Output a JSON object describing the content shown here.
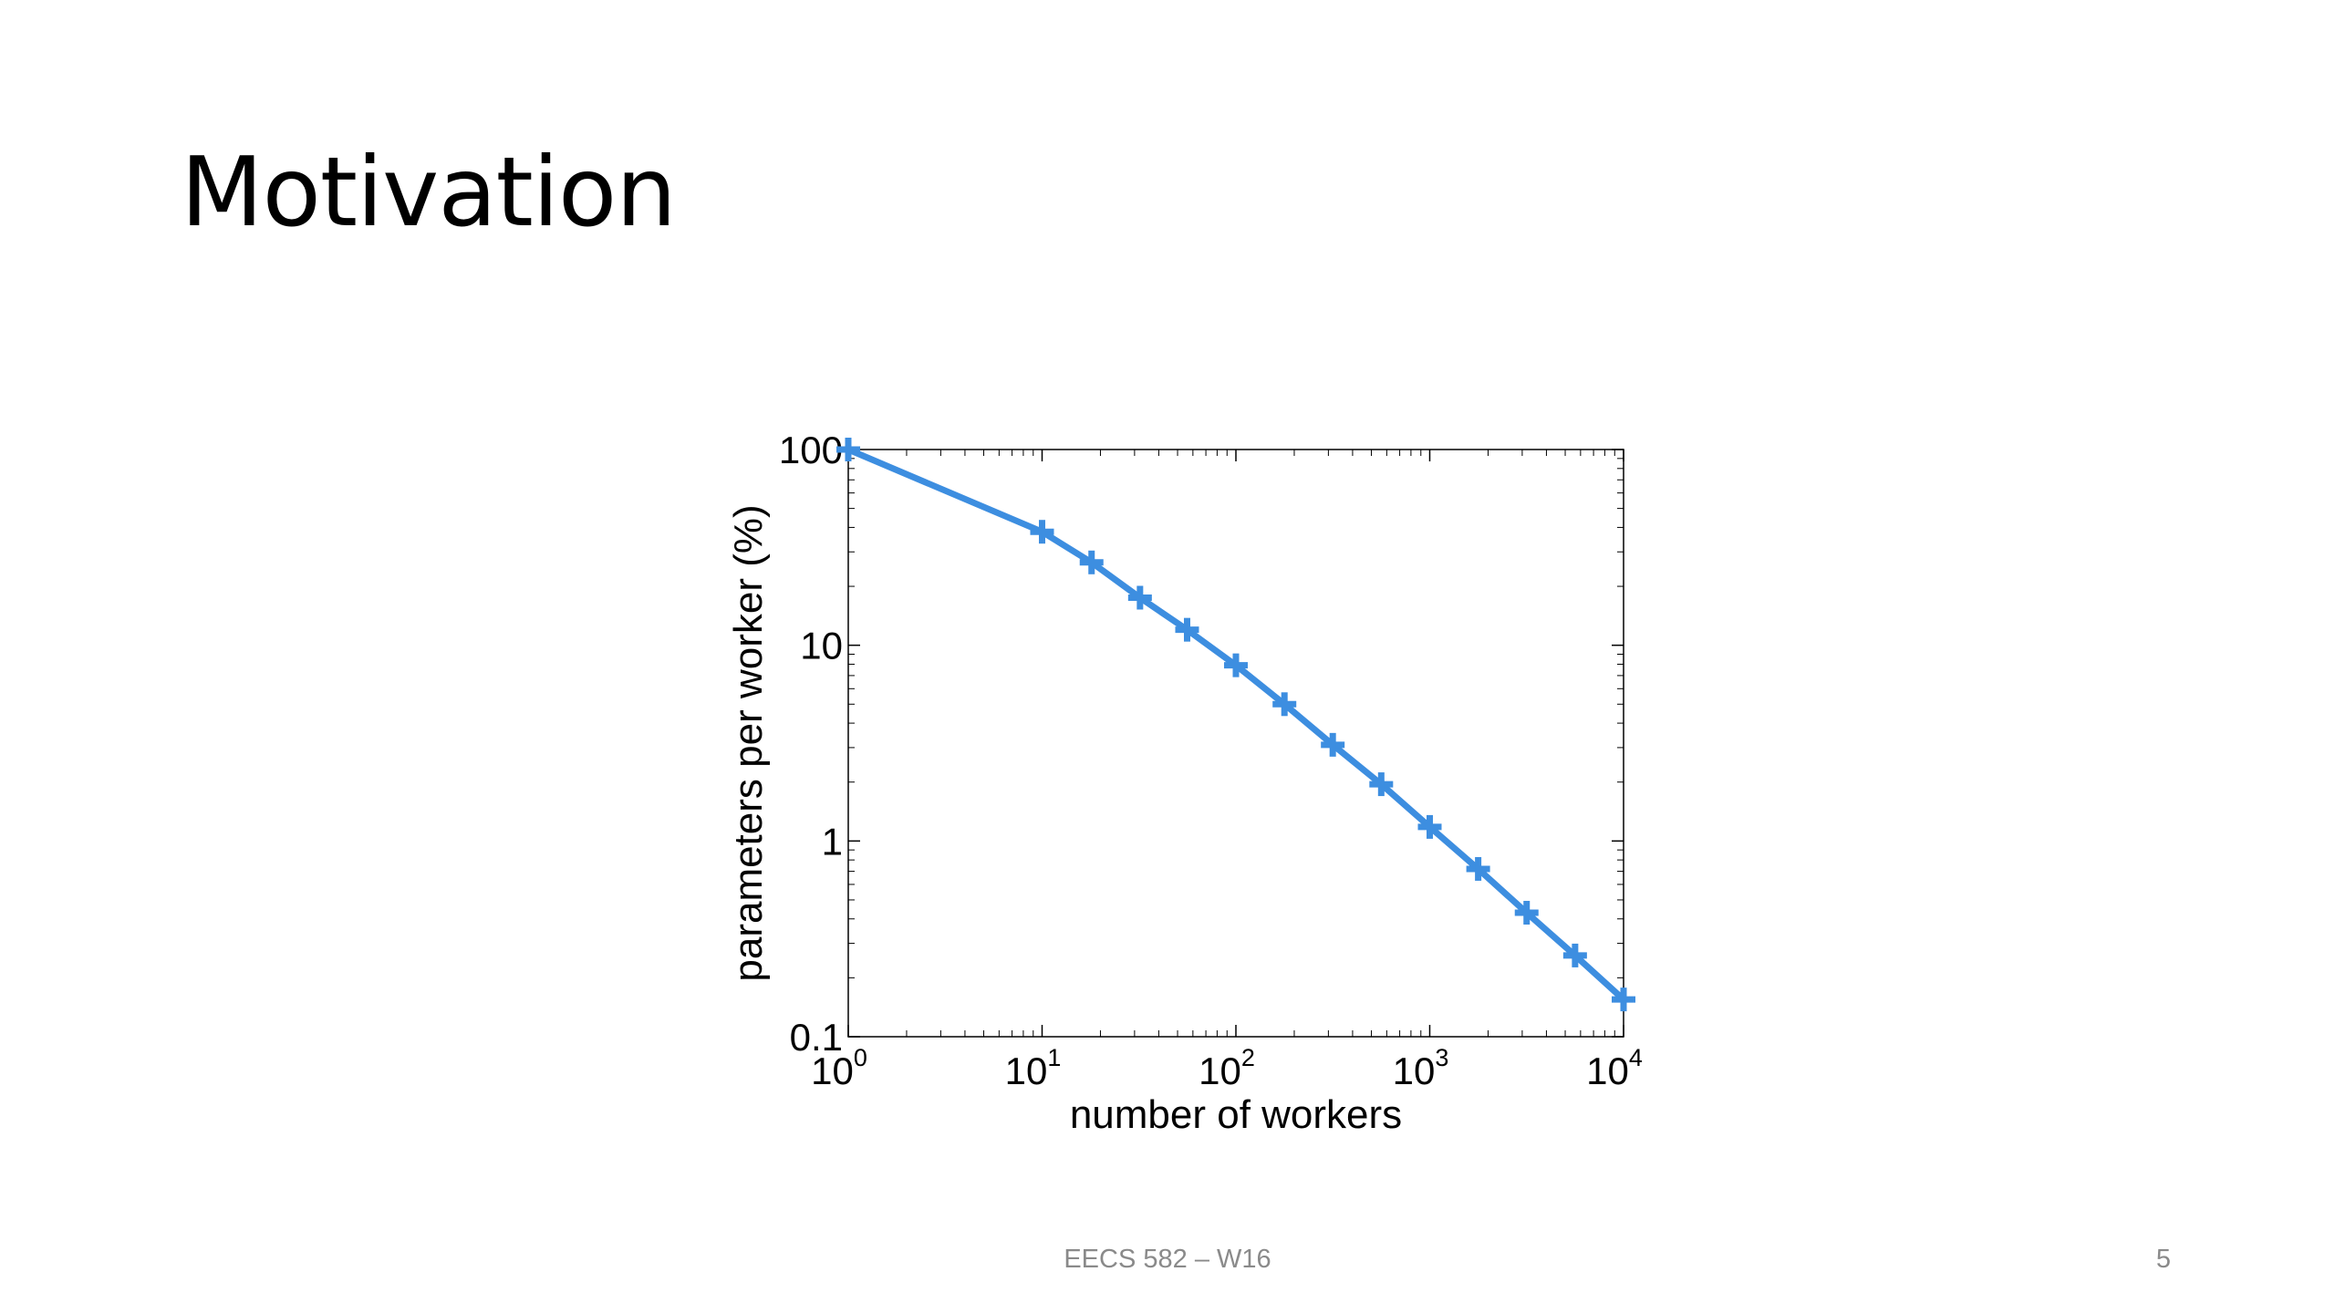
{
  "slide": {
    "title": "Motivation",
    "footer": "EECS 582 – W16",
    "page_number": "5"
  },
  "chart_data": {
    "type": "line",
    "title": "",
    "xlabel": "number of workers",
    "ylabel": "parameters per worker (%)",
    "xscale": "log",
    "yscale": "log",
    "xlim": [
      1,
      10000
    ],
    "ylim": [
      0.1,
      100
    ],
    "x_tick_labels": [
      {
        "base": "10",
        "exp": "0"
      },
      {
        "base": "10",
        "exp": "1"
      },
      {
        "base": "10",
        "exp": "2"
      },
      {
        "base": "10",
        "exp": "3"
      },
      {
        "base": "10",
        "exp": "4"
      }
    ],
    "y_tick_labels": [
      "0.1",
      "1",
      "10",
      "100"
    ],
    "grid": false,
    "line_color": "#3d8ee0",
    "marker": "plus",
    "series": [
      {
        "x": [
          1,
          10,
          18,
          32,
          56,
          100,
          178,
          316,
          562,
          1000,
          1778,
          3162,
          5623,
          10000
        ],
        "values": [
          100,
          38,
          26.5,
          17.5,
          12,
          7.9,
          5,
          3.1,
          1.95,
          1.18,
          0.72,
          0.43,
          0.26,
          0.155
        ]
      }
    ]
  }
}
